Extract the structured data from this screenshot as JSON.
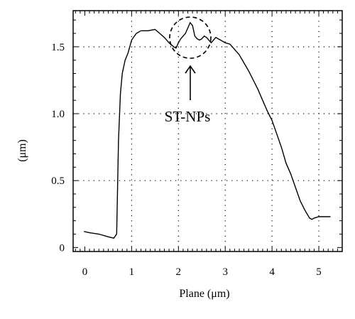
{
  "chart_data": {
    "type": "line",
    "xlabel": "Plane (μm)",
    "ylabel": "(μm)",
    "xlim": [
      -0.25,
      5.5
    ],
    "ylim": [
      -0.03,
      1.77
    ],
    "xticks": [
      0,
      1,
      2,
      3,
      4,
      5
    ],
    "yticks": [
      0,
      0.5,
      1.0,
      1.5
    ],
    "xtick_labels": [
      "0",
      "1",
      "2",
      "3",
      "4",
      "5"
    ],
    "ytick_labels": [
      "0",
      "0.5",
      "1.0",
      "1.5"
    ],
    "grid": "dotted",
    "annotation": {
      "text": "ST-NPs",
      "marks": "dashed circle around peak with arrow"
    },
    "series": [
      {
        "x": [
          -0.02,
          0.1,
          0.3,
          0.5,
          0.62,
          0.68,
          0.72,
          0.76,
          0.8,
          0.86,
          0.92,
          1.0,
          1.1,
          1.2,
          1.35,
          1.5,
          1.6,
          1.7,
          1.8,
          1.9,
          1.95,
          2.0,
          2.05,
          2.1,
          2.15,
          2.2,
          2.25,
          2.3,
          2.35,
          2.4,
          2.45,
          2.5,
          2.55,
          2.6,
          2.65,
          2.7,
          2.75,
          2.8,
          2.85,
          2.9,
          3.0,
          3.1,
          3.2,
          3.3,
          3.4,
          3.5,
          3.6,
          3.7,
          3.8,
          3.9,
          4.0,
          4.1,
          4.2,
          4.3,
          4.4,
          4.5,
          4.6,
          4.7,
          4.8,
          4.85,
          4.9,
          5.0,
          5.1,
          5.25
        ],
        "y": [
          0.12,
          0.11,
          0.1,
          0.08,
          0.07,
          0.1,
          0.8,
          1.15,
          1.3,
          1.4,
          1.45,
          1.55,
          1.6,
          1.62,
          1.62,
          1.63,
          1.6,
          1.57,
          1.53,
          1.5,
          1.49,
          1.53,
          1.56,
          1.58,
          1.6,
          1.64,
          1.68,
          1.66,
          1.58,
          1.56,
          1.55,
          1.56,
          1.58,
          1.57,
          1.55,
          1.53,
          1.55,
          1.57,
          1.56,
          1.55,
          1.53,
          1.52,
          1.48,
          1.44,
          1.38,
          1.32,
          1.25,
          1.18,
          1.1,
          1.02,
          0.95,
          0.85,
          0.75,
          0.63,
          0.55,
          0.45,
          0.35,
          0.28,
          0.22,
          0.21,
          0.22,
          0.23,
          0.23,
          0.23
        ]
      }
    ]
  }
}
